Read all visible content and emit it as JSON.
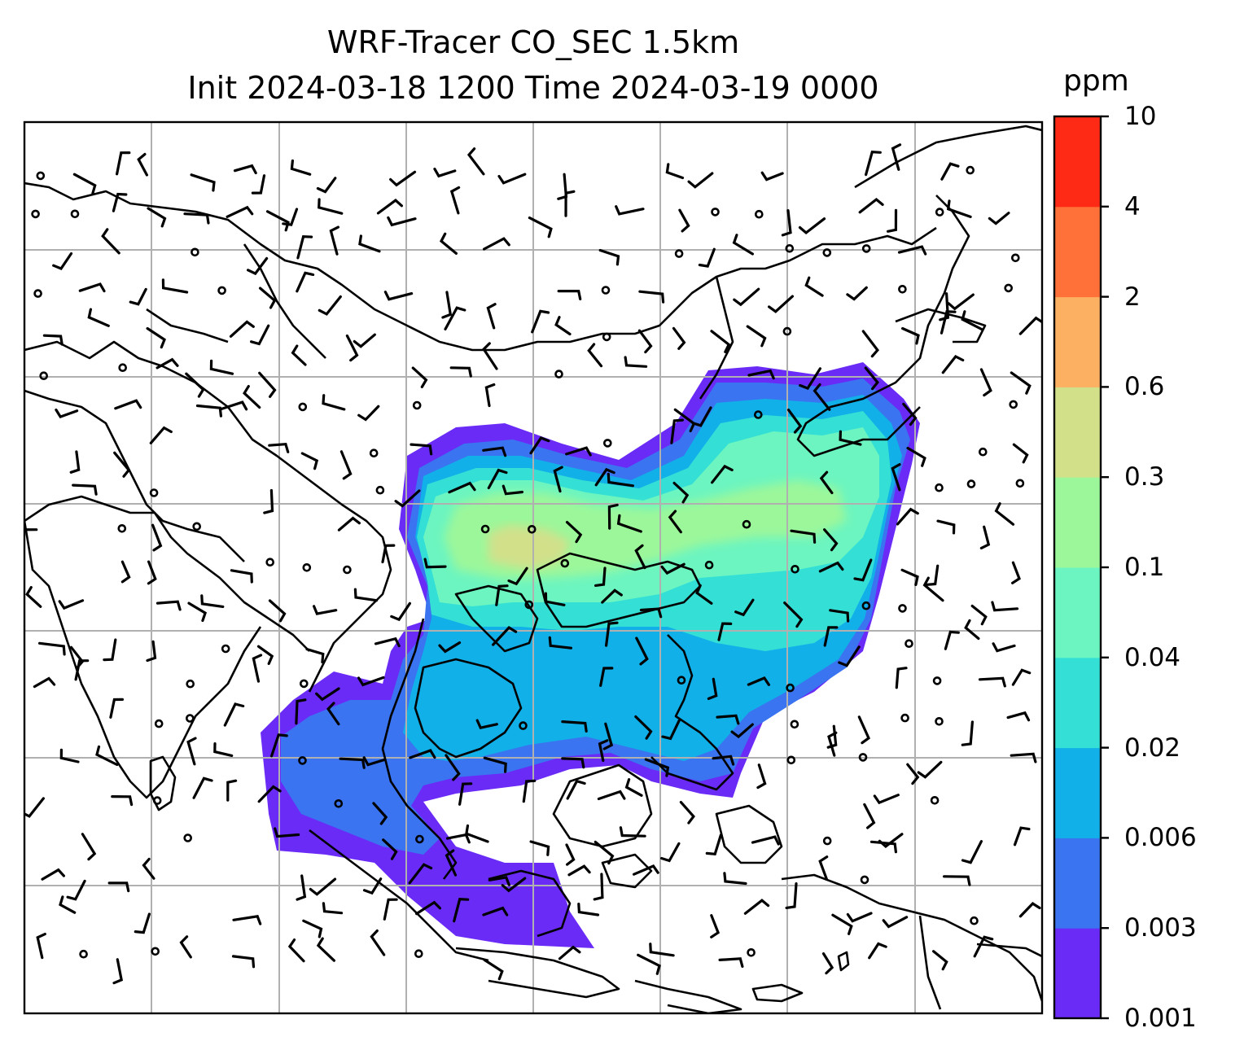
{
  "title": {
    "line1": "WRF-Tracer CO_SEC 1.5km",
    "line2": "Init 2024-03-18 1200 Time 2024-03-19 0000"
  },
  "colorbar": {
    "unit": "ppm",
    "tick_labels": [
      "0.001",
      "0.003",
      "0.006",
      "0.02",
      "0.04",
      "0.1",
      "0.3",
      "0.6",
      "2",
      "4",
      "10"
    ],
    "colors": [
      "#6a2bf7",
      "#3a74f0",
      "#12b0e8",
      "#34e0d5",
      "#6cf5c0",
      "#9cf79a",
      "#d2e08a",
      "#fbb062",
      "#ff7138",
      "#ff2a16"
    ]
  },
  "map": {
    "field": "CO_SEC tracer concentration",
    "wind_vectors": "wind barbs",
    "gridlines": true
  }
}
